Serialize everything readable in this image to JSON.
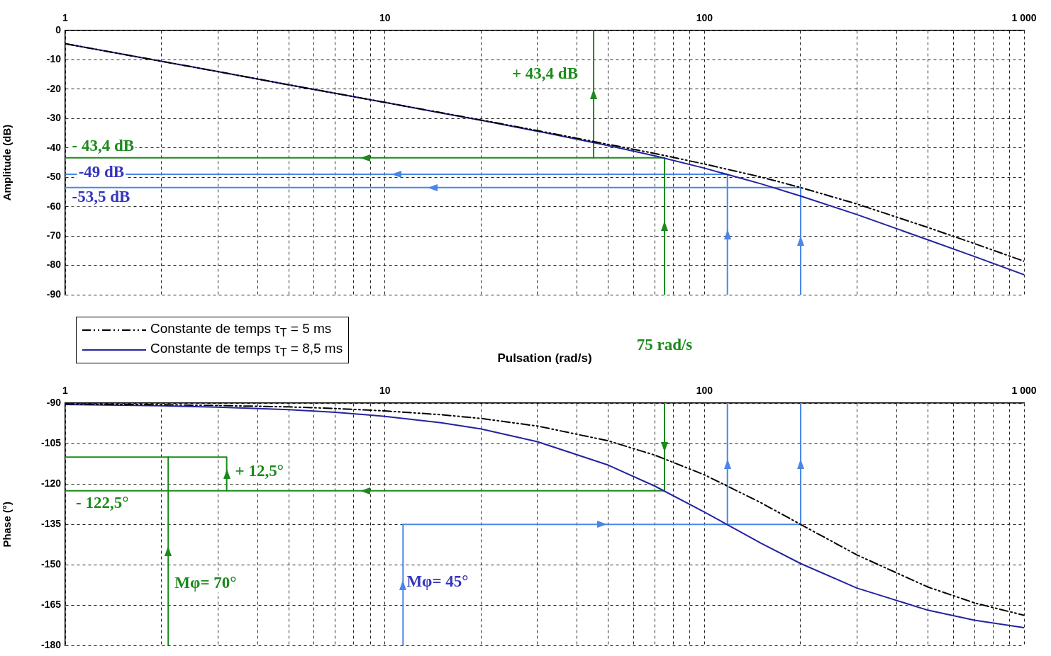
{
  "chart_data": [
    {
      "type": "line",
      "xlabel": "Pulsation (rad/s)",
      "ylabel": "Amplitude (dB)",
      "log": "x",
      "grid": true,
      "legend": "bottom left",
      "marker": "none",
      "xlim": [
        1,
        1000
      ],
      "xticks": [
        1,
        {
          "value": 2,
          "label": null
        },
        {
          "value": 3,
          "label": null
        },
        {
          "value": 4,
          "label": null
        },
        {
          "value": 5,
          "label": null
        },
        {
          "value": 6,
          "label": null
        },
        {
          "value": 7,
          "label": null
        },
        {
          "value": 8,
          "label": null
        },
        {
          "value": 9,
          "label": null
        },
        10,
        {
          "value": 20,
          "label": null
        },
        {
          "value": 30,
          "label": null
        },
        {
          "value": 40,
          "label": null
        },
        {
          "value": 50,
          "label": null
        },
        {
          "value": 60,
          "label": null
        },
        {
          "value": 70,
          "label": null
        },
        {
          "value": 80,
          "label": null
        },
        {
          "value": 90,
          "label": null
        },
        100,
        {
          "value": 200,
          "label": null
        },
        {
          "value": 300,
          "label": null
        },
        {
          "value": 400,
          "label": null
        },
        {
          "value": 500,
          "label": null
        },
        {
          "value": 600,
          "label": null
        },
        {
          "value": 700,
          "label": null
        },
        {
          "value": 800,
          "label": null
        },
        {
          "value": 900,
          "label": null
        },
        {
          "value": 1000,
          "label": "1 000"
        }
      ],
      "ylim": [
        -90,
        0
      ],
      "yticks": [
        0,
        -10,
        -20,
        -30,
        -40,
        -50,
        -60,
        -70,
        -80,
        -90
      ],
      "x": [
        1,
        2,
        3,
        5,
        7,
        10,
        15,
        20,
        30,
        50,
        70,
        100,
        150,
        200,
        300,
        500,
        700,
        1000
      ],
      "series": [
        {
          "name": "Constante de temps τ$_{T}$ = 5 ms",
          "color": "#000000",
          "line_style": "dashed",
          "values": [
            -4.5,
            -10.5,
            -14.0,
            -18.5,
            -21.4,
            -24.5,
            -28.0,
            -30.5,
            -34.1,
            -38.8,
            -41.9,
            -45.5,
            -49.9,
            -53.5,
            -59.1,
            -67.1,
            -72.6,
            -78.6
          ]
        },
        {
          "name": "Constante de temps τ$_{T}$ = 8,5 ms",
          "color": "#2323a0",
          "values": [
            -4.5,
            -10.5,
            -14.0,
            -18.5,
            -21.4,
            -24.5,
            -28.1,
            -30.6,
            -34.3,
            -39.2,
            -42.7,
            -46.9,
            -52.2,
            -56.4,
            -62.7,
            -71.3,
            -77.0,
            -83.2
          ]
        },
        {
          "color": "#1c8a1c",
          "x": [
            75,
            1
          ],
          "values": [
            -43.4,
            -43.4
          ]
        },
        {
          "color": "#1c8a1c",
          "x": [
            45,
            45
          ],
          "values": [
            -43.4,
            0
          ]
        },
        {
          "color": "#1c8a1c",
          "x": [
            75,
            75
          ],
          "values": [
            -90,
            -43.4
          ]
        },
        {
          "color": "#4a86e8",
          "x": [
            118,
            1
          ],
          "values": [
            -49,
            -49
          ]
        },
        {
          "color": "#4a86e8",
          "x": [
            200,
            1
          ],
          "values": [
            -53.5,
            -53.5
          ]
        },
        {
          "color": "#4a86e8",
          "x": [
            118,
            118
          ],
          "values": [
            -90,
            -49
          ]
        },
        {
          "color": "#4a86e8",
          "x": [
            200,
            200
          ],
          "values": [
            -90,
            -53.5
          ]
        }
      ],
      "annotations": [
        "+ 43,4 dB",
        "- 43,4 dB",
        "-49 dB",
        "-53,5 dB",
        {
          "text": "75 rad/s",
          "x": 75,
          "y": -90
        }
      ]
    },
    {
      "type": "line",
      "ylabel": "Phase (°)",
      "log": "x",
      "grid": true,
      "marker": "none",
      "xlim": [
        1,
        1000
      ],
      "xticks": [
        1,
        {
          "value": 2,
          "label": null
        },
        {
          "value": 3,
          "label": null
        },
        {
          "value": 4,
          "label": null
        },
        {
          "value": 5,
          "label": null
        },
        {
          "value": 6,
          "label": null
        },
        {
          "value": 7,
          "label": null
        },
        {
          "value": 8,
          "label": null
        },
        {
          "value": 9,
          "label": null
        },
        10,
        {
          "value": 20,
          "label": null
        },
        {
          "value": 30,
          "label": null
        },
        {
          "value": 40,
          "label": null
        },
        {
          "value": 50,
          "label": null
        },
        {
          "value": 60,
          "label": null
        },
        {
          "value": 70,
          "label": null
        },
        {
          "value": 80,
          "label": null
        },
        {
          "value": 90,
          "label": null
        },
        100,
        {
          "value": 200,
          "label": null
        },
        {
          "value": 300,
          "label": null
        },
        {
          "value": 400,
          "label": null
        },
        {
          "value": 500,
          "label": null
        },
        {
          "value": 600,
          "label": null
        },
        {
          "value": 700,
          "label": null
        },
        {
          "value": 800,
          "label": null
        },
        {
          "value": 900,
          "label": null
        },
        {
          "value": 1000,
          "label": "1 000"
        }
      ],
      "ylim": [
        -180,
        -90
      ],
      "yticks": [
        -90,
        -105,
        -120,
        -135,
        -150,
        -165,
        -180
      ],
      "x": [
        1,
        2,
        3,
        5,
        7,
        10,
        15,
        20,
        30,
        50,
        70,
        100,
        150,
        200,
        300,
        500,
        700,
        1000
      ],
      "series": [
        {
          "color": "#000000",
          "line_style": "dashed",
          "values": [
            -90.3,
            -90.6,
            -90.9,
            -91.4,
            -92.0,
            -92.9,
            -94.3,
            -95.7,
            -98.5,
            -104.0,
            -109.3,
            -116.6,
            -126.9,
            -135.0,
            -146.3,
            -158.2,
            -164.1,
            -168.7
          ]
        },
        {
          "color": "#2323a0",
          "values": [
            -90.5,
            -91.0,
            -91.5,
            -92.4,
            -93.4,
            -94.9,
            -97.3,
            -99.6,
            -104.3,
            -113.0,
            -120.8,
            -130.4,
            -141.9,
            -149.5,
            -158.6,
            -166.8,
            -170.5,
            -173.3
          ]
        },
        {
          "color": "#1c8a1c",
          "x": [
            75,
            75
          ],
          "values": [
            -90,
            -122.5
          ]
        },
        {
          "color": "#1c8a1c",
          "x": [
            75,
            1
          ],
          "values": [
            -122.5,
            -122.5
          ]
        },
        {
          "color": "#1c8a1c",
          "x": [
            3.2,
            3.2,
            1
          ],
          "values": [
            -122.5,
            -110,
            -110
          ]
        },
        {
          "color": "#1c8a1c",
          "x": [
            2.1,
            2.1
          ],
          "values": [
            -180,
            -110
          ]
        },
        {
          "color": "#4a86e8",
          "x": [
            11.4,
            11.4
          ],
          "values": [
            -180,
            -135
          ]
        },
        {
          "color": "#4a86e8",
          "x": [
            11.4,
            200
          ],
          "values": [
            -135,
            -135
          ]
        },
        {
          "color": "#4a86e8",
          "x": [
            118,
            118
          ],
          "values": [
            -135,
            -90
          ]
        },
        {
          "color": "#4a86e8",
          "x": [
            200,
            200
          ],
          "values": [
            -135,
            -90
          ]
        }
      ],
      "annotations": [
        "+ 12,5°",
        "- 122,5°",
        "Mφ= 70°",
        "Mφ= 45°"
      ]
    }
  ]
}
